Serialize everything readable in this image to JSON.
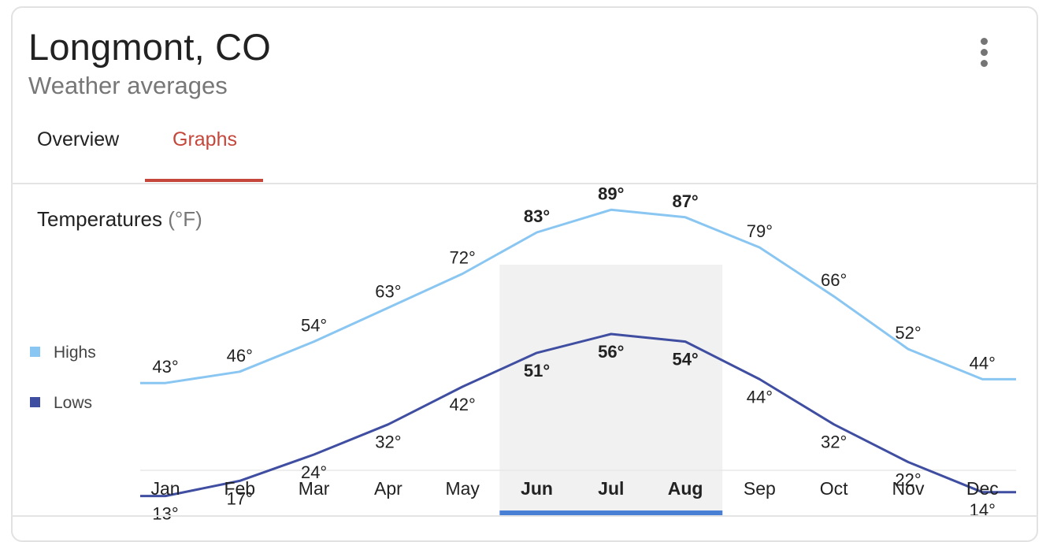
{
  "header": {
    "title": "Longmont, CO",
    "subtitle": "Weather averages"
  },
  "tabs": [
    {
      "label": "Overview",
      "active": false
    },
    {
      "label": "Graphs",
      "active": true
    }
  ],
  "section": {
    "title": "Temperatures",
    "unit": "(°F)"
  },
  "colors": {
    "highs": "#8ac6f2",
    "lows": "#3f4ea1",
    "active_tab": "#c5463a",
    "selection_bar": "#4a7fd6",
    "selection_bg": "#f1f1f1"
  },
  "icons": {
    "menu": "more-vert-icon"
  },
  "chart_data": {
    "type": "line",
    "categories": [
      "Jan",
      "Feb",
      "Mar",
      "Apr",
      "May",
      "Jun",
      "Jul",
      "Aug",
      "Sep",
      "Oct",
      "Nov",
      "Dec"
    ],
    "series": [
      {
        "name": "Highs",
        "values": [
          43,
          46,
          54,
          63,
          72,
          83,
          89,
          87,
          79,
          66,
          52,
          44
        ]
      },
      {
        "name": "Lows",
        "values": [
          13,
          17,
          24,
          32,
          42,
          51,
          56,
          54,
          44,
          32,
          22,
          14
        ]
      }
    ],
    "value_suffix": "°",
    "highlighted_categories": [
      "Jun",
      "Jul",
      "Aug"
    ],
    "legend_position": "left",
    "grid": false
  }
}
